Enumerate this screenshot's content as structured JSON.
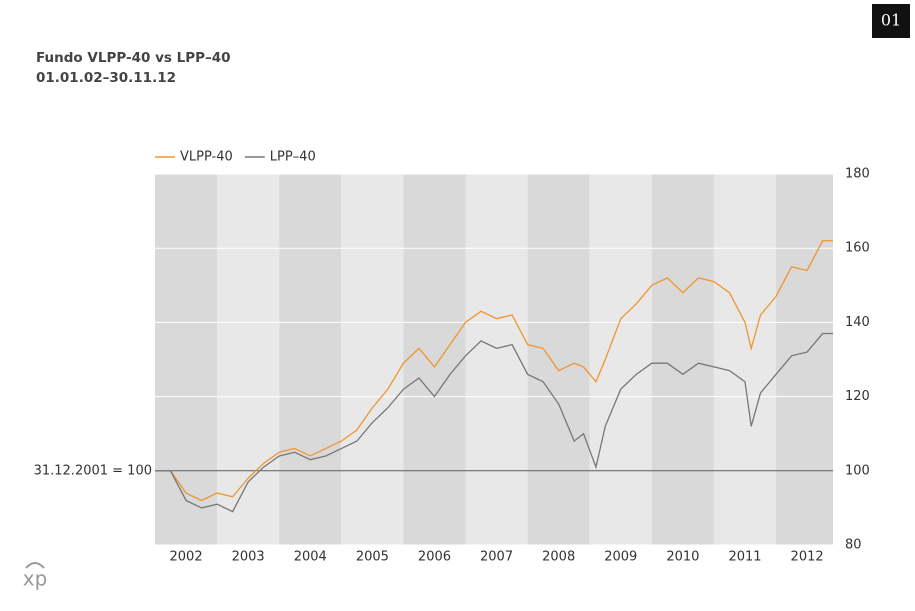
{
  "badge": "01",
  "chart_data": {
    "type": "line",
    "title": "Fundo VLPP-40 vs LPP–40",
    "subtitle": "01.01.02–30.11.12",
    "x": [
      2002,
      2002.25,
      2002.5,
      2002.75,
      2003,
      2003.25,
      2003.5,
      2003.75,
      2004,
      2004.25,
      2004.5,
      2004.75,
      2005,
      2005.25,
      2005.5,
      2005.75,
      2006,
      2006.25,
      2006.5,
      2006.75,
      2007,
      2007.25,
      2007.5,
      2007.75,
      2008,
      2008.25,
      2008.5,
      2008.75,
      2008.9,
      2009.1,
      2009.25,
      2009.5,
      2009.75,
      2010,
      2010.25,
      2010.5,
      2010.75,
      2011,
      2011.25,
      2011.5,
      2011.6,
      2011.75,
      2012,
      2012.25,
      2012.5,
      2012.75,
      2012.917
    ],
    "series": [
      {
        "name": "VLPP-40",
        "color": "#f0952e",
        "values": [
          100,
          100,
          94,
          92,
          94,
          93,
          98,
          102,
          105,
          106,
          104,
          106,
          108,
          111,
          117,
          122,
          129,
          133,
          128,
          134,
          140,
          143,
          141,
          142,
          134,
          133,
          127,
          129,
          128,
          124,
          130,
          141,
          145,
          150,
          152,
          148,
          152,
          151,
          148,
          140,
          133,
          142,
          147,
          155,
          154,
          162,
          162
        ]
      },
      {
        "name": "LPP–40",
        "color": "#777777",
        "values": [
          100,
          100,
          92,
          90,
          91,
          89,
          97,
          101,
          104,
          105,
          103,
          104,
          106,
          108,
          113,
          117,
          122,
          125,
          120,
          126,
          131,
          135,
          133,
          134,
          126,
          124,
          118,
          108,
          110,
          101,
          112,
          122,
          126,
          129,
          129,
          126,
          129,
          128,
          127,
          124,
          112,
          121,
          126,
          131,
          132,
          137,
          137
        ]
      }
    ],
    "xlim": [
      2002,
      2012.917
    ],
    "xticks": [
      {
        "value": 2002.5,
        "label": "2002"
      },
      {
        "value": 2003.5,
        "label": "2003"
      },
      {
        "value": 2004.5,
        "label": "2004"
      },
      {
        "value": 2005.5,
        "label": "2005"
      },
      {
        "value": 2006.5,
        "label": "2006"
      },
      {
        "value": 2007.5,
        "label": "2007"
      },
      {
        "value": 2008.5,
        "label": "2008"
      },
      {
        "value": 2009.5,
        "label": "2009"
      },
      {
        "value": 2010.5,
        "label": "2010"
      },
      {
        "value": 2011.5,
        "label": "2011"
      },
      {
        "value": 2012.5,
        "label": "2012"
      }
    ],
    "ylim": [
      80,
      180
    ],
    "yticks": [
      80,
      100,
      120,
      140,
      160,
      180
    ],
    "reference_line": {
      "value": 100,
      "label": "31.12.2001 = 100"
    },
    "grid": true
  }
}
